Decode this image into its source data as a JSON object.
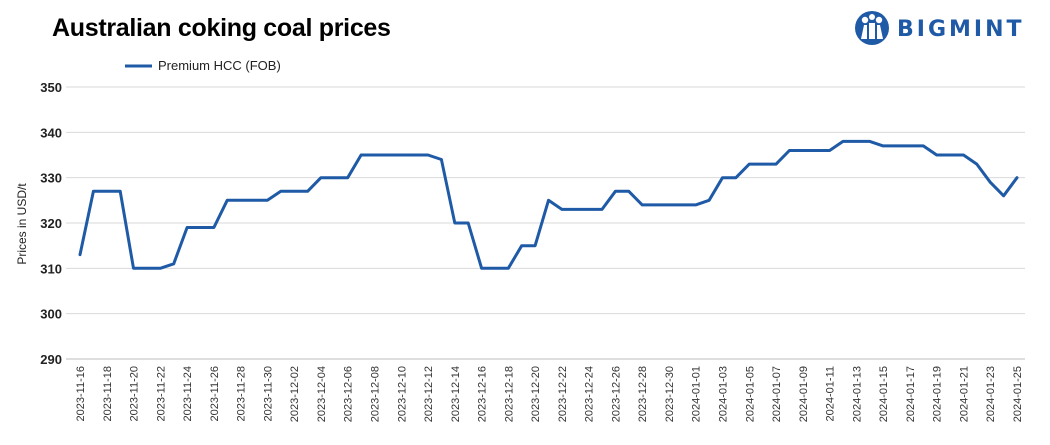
{
  "chart_data": {
    "type": "line",
    "title": "Australian coking coal prices",
    "ylabel": "Prices in USD/t",
    "xlabel": "",
    "ylim": [
      290,
      350
    ],
    "yticks": [
      290,
      300,
      310,
      320,
      330,
      340,
      350
    ],
    "grid": "horizontal",
    "legend_position": "top-left",
    "series_color": "#1f5aa6",
    "x_tick_labels": [
      "2023-11-16",
      "2023-11-18",
      "2023-11-20",
      "2023-11-22",
      "2023-11-24",
      "2023-11-26",
      "2023-11-28",
      "2023-11-30",
      "2023-12-02",
      "2023-12-04",
      "2023-12-06",
      "2023-12-08",
      "2023-12-10",
      "2023-12-12",
      "2023-12-14",
      "2023-12-16",
      "2023-12-18",
      "2023-12-20",
      "2023-12-22",
      "2023-12-24",
      "2023-12-26",
      "2023-12-28",
      "2023-12-30",
      "2024-01-01",
      "2024-01-03",
      "2024-01-05",
      "2024-01-07",
      "2024-01-09",
      "2024-01-11",
      "2024-01-13",
      "2024-01-15",
      "2024-01-17",
      "2024-01-19",
      "2024-01-21",
      "2024-01-23",
      "2024-01-25"
    ],
    "series": [
      {
        "name": "Premium HCC (FOB)",
        "x": [
          "2023-11-16",
          "2023-11-17",
          "2023-11-18",
          "2023-11-19",
          "2023-11-20",
          "2023-11-21",
          "2023-11-22",
          "2023-11-23",
          "2023-11-24",
          "2023-11-25",
          "2023-11-26",
          "2023-11-27",
          "2023-11-28",
          "2023-11-29",
          "2023-11-30",
          "2023-12-01",
          "2023-12-02",
          "2023-12-03",
          "2023-12-04",
          "2023-12-05",
          "2023-12-06",
          "2023-12-07",
          "2023-12-08",
          "2023-12-09",
          "2023-12-10",
          "2023-12-11",
          "2023-12-12",
          "2023-12-13",
          "2023-12-14",
          "2023-12-15",
          "2023-12-16",
          "2023-12-17",
          "2023-12-18",
          "2023-12-19",
          "2023-12-20",
          "2023-12-21",
          "2023-12-22",
          "2023-12-23",
          "2023-12-24",
          "2023-12-25",
          "2023-12-26",
          "2023-12-27",
          "2023-12-28",
          "2023-12-29",
          "2023-12-30",
          "2023-12-31",
          "2024-01-01",
          "2024-01-02",
          "2024-01-03",
          "2024-01-04",
          "2024-01-05",
          "2024-01-06",
          "2024-01-07",
          "2024-01-08",
          "2024-01-09",
          "2024-01-10",
          "2024-01-11",
          "2024-01-12",
          "2024-01-13",
          "2024-01-14",
          "2024-01-15",
          "2024-01-16",
          "2024-01-17",
          "2024-01-18",
          "2024-01-19",
          "2024-01-20",
          "2024-01-21",
          "2024-01-22",
          "2024-01-23",
          "2024-01-24",
          "2024-01-25"
        ],
        "values": [
          313,
          327,
          327,
          327,
          310,
          310,
          310,
          311,
          319,
          319,
          319,
          325,
          325,
          325,
          325,
          327,
          327,
          327,
          330,
          330,
          330,
          335,
          335,
          335,
          335,
          335,
          335,
          334,
          320,
          320,
          310,
          310,
          310,
          315,
          315,
          325,
          323,
          323,
          323,
          323,
          327,
          327,
          324,
          324,
          324,
          324,
          324,
          325,
          330,
          330,
          333,
          333,
          333,
          336,
          336,
          336,
          336,
          338,
          338,
          338,
          337,
          337,
          337,
          337,
          335,
          335,
          335,
          333,
          329,
          326,
          330
        ]
      }
    ]
  },
  "logo": {
    "text": "BIGMINT"
  }
}
